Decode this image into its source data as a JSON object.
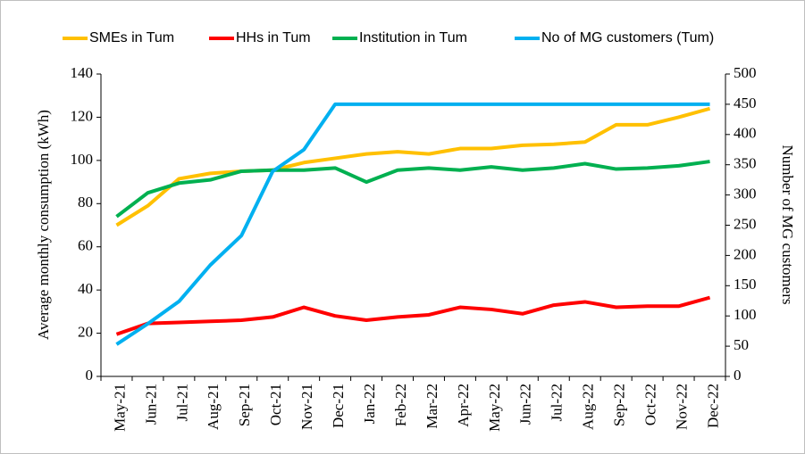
{
  "chart_data": {
    "type": "line",
    "categories": [
      "May-21",
      "Jun-21",
      "Jul-21",
      "Aug-21",
      "Sep-21",
      "Oct-21",
      "Nov-21",
      "Dec-21",
      "Jan-22",
      "Feb-22",
      "Mar-22",
      "Apr-22",
      "May-22",
      "Jun-22",
      "Jul-22",
      "Aug-22",
      "Sep-22",
      "Oct-22",
      "Nov-22",
      "Dec-22"
    ],
    "series": [
      {
        "name": "SMEs in Tum",
        "color": "#ffc000",
        "values": [
          70,
          79,
          91.5,
          94,
          95,
          95.5,
          99,
          101,
          103,
          104,
          103,
          105.5,
          105.5,
          107,
          107.5,
          108.5,
          116.5,
          116.5,
          120,
          124
        ]
      },
      {
        "name": "HHs in Tum",
        "color": "#ff0000",
        "values": [
          19.5,
          24.5,
          25,
          25.5,
          26,
          27.5,
          32,
          28,
          26,
          27.5,
          28.5,
          32,
          31,
          29,
          33,
          34.5,
          32,
          32.5,
          32.5,
          36.5
        ]
      },
      {
        "name": "Institution in Tum",
        "color": "#00b050",
        "values": [
          74,
          85,
          89.5,
          91,
          95,
          95.5,
          95.5,
          96.5,
          90,
          95.5,
          96.5,
          95.5,
          97,
          95.5,
          96.5,
          98.5,
          96,
          96.5,
          97.5,
          99.5
        ]
      },
      {
        "name": "No of MG customers (Tum)",
        "color": "#00b0f0",
        "axis": "y2",
        "values": [
          53,
          87,
          124,
          184,
          233,
          339,
          375,
          450,
          450,
          450,
          450,
          450,
          450,
          450,
          450,
          450,
          450,
          450,
          450,
          450
        ]
      }
    ],
    "ylabel": "Average monthly consumption (kWh)",
    "y2label": "Number of MG customers",
    "ylim": [
      0,
      140
    ],
    "yticks": [
      0,
      20,
      40,
      60,
      80,
      100,
      120,
      140
    ],
    "y2lim": [
      0,
      500
    ],
    "y2ticks": [
      0,
      50,
      100,
      150,
      200,
      250,
      300,
      350,
      400,
      450,
      500
    ],
    "legend": "top"
  }
}
